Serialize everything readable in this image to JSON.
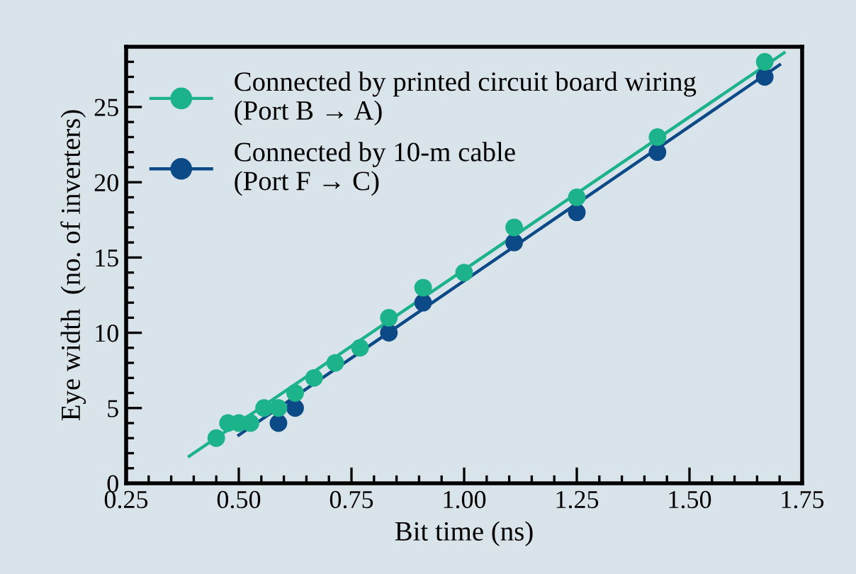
{
  "chart_data": {
    "type": "scatter",
    "xlabel": "Bit time (ns)",
    "ylabel": "Eye width  (no. of inverters)",
    "xlim": [
      0.25,
      1.75
    ],
    "xticks": [
      {
        "value": 0.25,
        "label": "0.25"
      },
      {
        "value": 0.5,
        "label": "0.50"
      },
      {
        "value": 0.75,
        "label": "0.75"
      },
      {
        "value": 1.0,
        "label": "1.00"
      },
      {
        "value": 1.25,
        "label": "1.25"
      },
      {
        "value": 1.5,
        "label": "1.50"
      },
      {
        "value": 1.75,
        "label": "1.75"
      }
    ],
    "ylim": [
      0,
      29
    ],
    "yticks": [
      0,
      5,
      10,
      15,
      20,
      25
    ],
    "marker": "circle",
    "legend": "top left",
    "grid": false,
    "series": [
      {
        "name": "Connected by printed circuit board wiring\n(Port B → A)",
        "color": "#1db38a",
        "x": [
          0.45,
          0.476,
          0.5,
          0.526,
          0.556,
          0.588,
          0.625,
          0.667,
          0.714,
          0.769,
          0.833,
          0.909,
          1.0,
          1.111,
          1.25,
          1.429,
          1.667
        ],
        "values": [
          3,
          4,
          4,
          4,
          5,
          5,
          6,
          7,
          8,
          9,
          11,
          13,
          14,
          17,
          19,
          23,
          28
        ]
      },
      {
        "name": "Connected by 10-m cable\n(Port F → C)",
        "color": "#0b4a86",
        "x": [
          0.588,
          0.625,
          0.667,
          0.714,
          0.769,
          0.833,
          0.909,
          1.0,
          1.111,
          1.25,
          1.429,
          1.667
        ],
        "values": [
          4,
          5,
          null,
          null,
          null,
          10,
          12,
          null,
          16,
          18,
          22,
          27
        ]
      },
      {
        "type": "line",
        "marker": "none",
        "color": "#1db38a",
        "x": [
          0.39,
          1.71
        ],
        "values": [
          1.8,
          28.6
        ]
      },
      {
        "type": "line",
        "marker": "none",
        "color": "#0b4a86",
        "x": [
          0.5,
          1.7
        ],
        "values": [
          3.2,
          27.8
        ]
      }
    ]
  }
}
